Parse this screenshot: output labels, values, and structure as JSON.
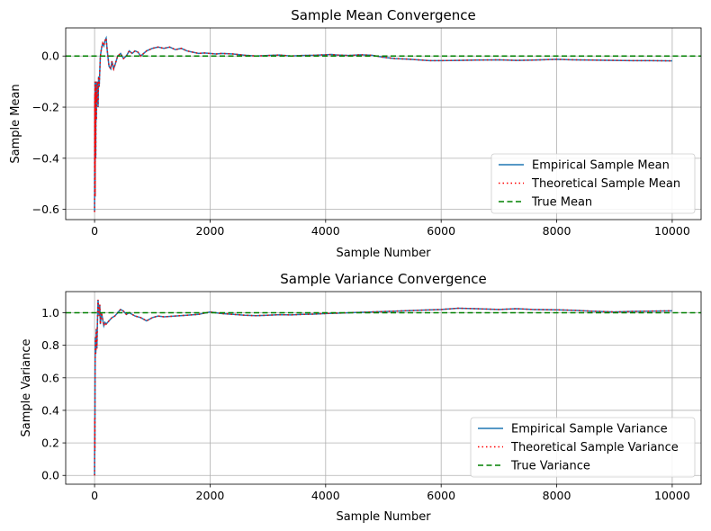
{
  "chart_data": [
    {
      "type": "line",
      "title": "Sample Mean Convergence",
      "xlabel": "Sample Number",
      "ylabel": "Sample Mean",
      "xlim": [
        -500,
        10500
      ],
      "ylim": [
        -0.64,
        0.11
      ],
      "x_ticks": [
        0,
        2000,
        4000,
        6000,
        8000,
        10000
      ],
      "x_tick_labels": [
        "0",
        "2000",
        "4000",
        "6000",
        "8000",
        "10000"
      ],
      "y_ticks": [
        -0.6,
        -0.4,
        -0.2,
        0.0
      ],
      "y_tick_labels": [
        "−0.6",
        "−0.4",
        "−0.2",
        "0.0"
      ],
      "grid": true,
      "legend_position": "lower-right",
      "series": [
        {
          "name": "Empirical Sample Mean",
          "color": "#1f77b4",
          "style": "solid",
          "x": [
            0,
            3,
            5,
            8,
            10,
            12,
            15,
            18,
            20,
            25,
            30,
            35,
            40,
            50,
            60,
            70,
            80,
            100,
            120,
            140,
            160,
            180,
            200,
            220,
            250,
            280,
            300,
            330,
            360,
            400,
            450,
            500,
            550,
            600,
            650,
            700,
            750,
            800,
            900,
            1000,
            1100,
            1200,
            1300,
            1400,
            1500,
            1600,
            1700,
            1800,
            1900,
            2000,
            2100,
            2200,
            2400,
            2600,
            2800,
            3000,
            3200,
            3400,
            3600,
            3800,
            4000,
            4100,
            4200,
            4400,
            4600,
            4800,
            5000,
            5200,
            5400,
            5600,
            5800,
            6000,
            6300,
            6600,
            7000,
            7300,
            7600,
            8000,
            8300,
            8600,
            9000,
            9300,
            9600,
            10000
          ],
          "y": [
            -0.61,
            -0.15,
            -0.45,
            -0.1,
            -0.55,
            -0.2,
            -0.35,
            -0.12,
            -0.4,
            -0.1,
            -0.25,
            -0.15,
            -0.18,
            -0.1,
            -0.2,
            -0.08,
            -0.12,
            0.0,
            0.03,
            0.05,
            0.04,
            0.06,
            0.07,
            0.02,
            -0.04,
            -0.05,
            -0.02,
            -0.05,
            -0.03,
            0.0,
            0.01,
            -0.01,
            0.0,
            0.02,
            0.01,
            0.02,
            0.015,
            0.0,
            0.02,
            0.03,
            0.035,
            0.03,
            0.035,
            0.025,
            0.03,
            0.02,
            0.015,
            0.01,
            0.012,
            0.01,
            0.008,
            0.01,
            0.008,
            0.003,
            0.0,
            0.002,
            0.004,
            0.0,
            0.002,
            0.003,
            0.005,
            0.006,
            0.004,
            0.002,
            0.005,
            0.003,
            -0.005,
            -0.01,
            -0.012,
            -0.015,
            -0.018,
            -0.018,
            -0.017,
            -0.016,
            -0.015,
            -0.017,
            -0.016,
            -0.013,
            -0.015,
            -0.016,
            -0.017,
            -0.018,
            -0.018,
            -0.019
          ]
        },
        {
          "name": "Theoretical Sample Mean",
          "color": "#ff0000",
          "style": "dotted",
          "same_as_series": 0
        },
        {
          "name": "True Mean",
          "color": "#008000",
          "style": "dashed",
          "constant": 0.0
        }
      ]
    },
    {
      "type": "line",
      "title": "Sample Variance Convergence",
      "xlabel": "Sample Number",
      "ylabel": "Sample Variance",
      "xlim": [
        -500,
        10500
      ],
      "ylim": [
        -0.054,
        1.13
      ],
      "x_ticks": [
        0,
        2000,
        4000,
        6000,
        8000,
        10000
      ],
      "x_tick_labels": [
        "0",
        "2000",
        "4000",
        "6000",
        "8000",
        "10000"
      ],
      "y_ticks": [
        0.0,
        0.2,
        0.4,
        0.6,
        0.8,
        1.0
      ],
      "y_tick_labels": [
        "0.0",
        "0.2",
        "0.4",
        "0.6",
        "0.8",
        "1.0"
      ],
      "grid": true,
      "legend_position": "lower-right",
      "series": [
        {
          "name": "Empirical Sample Variance",
          "color": "#1f77b4",
          "style": "solid",
          "x": [
            0,
            3,
            5,
            8,
            10,
            15,
            20,
            25,
            30,
            40,
            50,
            60,
            70,
            80,
            90,
            100,
            120,
            140,
            160,
            180,
            200,
            250,
            300,
            350,
            400,
            450,
            500,
            550,
            600,
            700,
            800,
            900,
            1000,
            1100,
            1200,
            1400,
            1600,
            1800,
            2000,
            2200,
            2400,
            2600,
            2800,
            3000,
            3200,
            3400,
            3600,
            3800,
            4000,
            4400,
            4800,
            5200,
            5600,
            6000,
            6300,
            6600,
            7000,
            7300,
            7600,
            8000,
            8300,
            8600,
            9000,
            9300,
            9600,
            10000
          ],
          "y": [
            0.0,
            0.35,
            0.15,
            0.55,
            0.7,
            0.85,
            0.75,
            0.8,
            0.9,
            0.78,
            0.95,
            1.08,
            1.02,
            0.98,
            1.05,
            0.93,
            1.0,
            0.96,
            0.92,
            0.94,
            0.93,
            0.95,
            0.97,
            0.98,
            1.0,
            1.02,
            1.01,
            0.99,
            1.0,
            0.98,
            0.97,
            0.95,
            0.97,
            0.98,
            0.975,
            0.98,
            0.985,
            0.99,
            1.005,
            0.995,
            0.99,
            0.985,
            0.982,
            0.985,
            0.988,
            0.987,
            0.99,
            0.992,
            0.995,
            1.0,
            1.005,
            1.01,
            1.015,
            1.02,
            1.028,
            1.025,
            1.02,
            1.025,
            1.02,
            1.018,
            1.015,
            1.01,
            1.005,
            1.008,
            1.01,
            1.012
          ]
        },
        {
          "name": "Theoretical Sample Variance",
          "color": "#ff0000",
          "style": "dotted",
          "same_as_series": 0
        },
        {
          "name": "True Variance",
          "color": "#008000",
          "style": "dashed",
          "constant": 1.0
        }
      ]
    }
  ]
}
